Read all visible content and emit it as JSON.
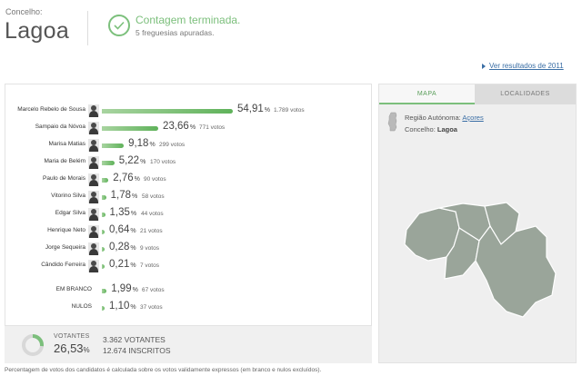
{
  "header": {
    "concelho_label": "Concelho:",
    "concelho_name": "Lagoa",
    "status_title": "Contagem terminada.",
    "status_sub": "5 freguesias apuradas.",
    "icon": "check-circle-icon",
    "accent_color": "#7cbf7c"
  },
  "prev_link": "Ver resultados de 2011",
  "candidates": [
    {
      "name": "Marcelo Rebelo de Sousa",
      "pct": "54,91",
      "votes": "1.789 votos",
      "share": 54.91
    },
    {
      "name": "Sampaio da Nóvoa",
      "pct": "23,66",
      "votes": "771 votos",
      "share": 23.66
    },
    {
      "name": "Marisa Matias",
      "pct": "9,18",
      "votes": "299 votos",
      "share": 9.18
    },
    {
      "name": "Maria de Belém",
      "pct": "5,22",
      "votes": "170 votos",
      "share": 5.22
    },
    {
      "name": "Paulo de Morais",
      "pct": "2,76",
      "votes": "90 votos",
      "share": 2.76
    },
    {
      "name": "Vitorino Silva",
      "pct": "1,78",
      "votes": "58 votos",
      "share": 1.78
    },
    {
      "name": "Edgar Silva",
      "pct": "1,35",
      "votes": "44 votos",
      "share": 1.35
    },
    {
      "name": "Henrique Neto",
      "pct": "0,64",
      "votes": "21 votos",
      "share": 0.64
    },
    {
      "name": "Jorge Sequeira",
      "pct": "0,28",
      "votes": "9 votos",
      "share": 0.28
    },
    {
      "name": "Cândido Ferreira",
      "pct": "0,21",
      "votes": "7 votos",
      "share": 0.21
    }
  ],
  "special": [
    {
      "name": "EM BRANCO",
      "pct": "1,99",
      "votes": "67 votos",
      "share": 1.99
    },
    {
      "name": "NULOS",
      "pct": "1,10",
      "votes": "37 votos",
      "share": 1.1
    }
  ],
  "pct_symbol": "%",
  "turnout": {
    "label": "VOTANTES",
    "pct": "26,53",
    "share": 26.53,
    "votantes": "3.362 VOTANTES",
    "inscritos": "12.674 INSCRITOS"
  },
  "note": "Percentagem de votos dos candidatos é calculada sobre os votos validamente expressos (em branco e nulos excluídos).",
  "map": {
    "tab_map": "MAPA",
    "tab_localidades": "LOCALIDADES",
    "regiao_label": "Região Autónoma:",
    "regiao_value": "Açores",
    "concelho_label": "Concelho:",
    "concelho_value": "Lagoa"
  }
}
